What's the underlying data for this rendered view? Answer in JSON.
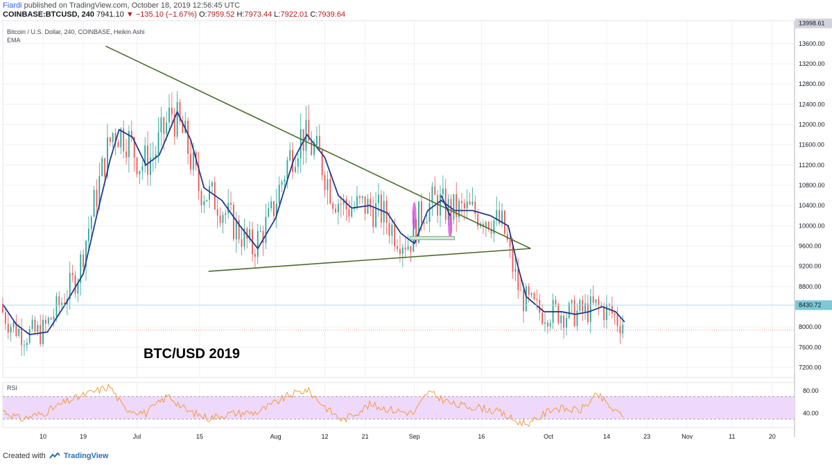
{
  "header": {
    "user": "Fiardi",
    "published_text": "published on TradingView.com, October 18, 2019 12:56:45 UTC",
    "symbol": "COINBASE:BTCUSD, 240",
    "last": "7941.10",
    "change": "−135.10 (−1.67%)",
    "o_label": "O:",
    "o_value": "7959.52",
    "h_label": "H:",
    "h_value": "7973.44",
    "l_label": "L:",
    "l_value": "7922.01",
    "c_label": "C:",
    "c_value": "7939.64"
  },
  "footer": {
    "created_text": "Created with",
    "brand": "TradingView"
  },
  "icons": {
    "down_arrow": "down-triangle-icon",
    "logo": "tradingview-logo-icon"
  },
  "colors": {
    "bull": "#26a69a",
    "bear": "#ef5350",
    "ema": "#1e3a8a",
    "trendline": "#4a6b2a",
    "rsi_line": "#f0932b",
    "rsi_band": "#efd9fb",
    "price_label_top": "#d1d4dc",
    "price_label_cyan": "#7ec8d8",
    "last_price_line": "#e57373",
    "blue_arrow": "#1e3a8a",
    "magenta": "#d63bdc"
  },
  "chart_data": [
    {
      "type": "candlestick",
      "title": "Bitcoin / U.S. Dollar, 240, COINBASE, Heikin Ashi",
      "indicator": "EMA",
      "annotation": "BTC/USD 2019",
      "xlabels": [
        "10",
        "19",
        "Jul",
        "15",
        "Aug",
        "12",
        "21",
        "Sep",
        "16",
        "Oct",
        "14",
        "23",
        "Nov",
        "11",
        "20"
      ],
      "ytick_labels": [
        "13600.00",
        "13200.00",
        "12800.00",
        "12400.00",
        "12000.00",
        "11600.00",
        "11200.00",
        "10800.00",
        "10400.00",
        "10000.00",
        "9600.00",
        "9200.00",
        "8800.00",
        "8000.00",
        "7600.00",
        "7200.00"
      ],
      "ylim": [
        7000,
        14050
      ],
      "price_labels": {
        "top": "13998.61",
        "marker": "8430.72",
        "last": 7941.1
      },
      "grid": true,
      "ema_path": [
        [
          "Jun 01",
          8450
        ],
        [
          "Jun 04",
          8050
        ],
        [
          "Jun 07",
          7850
        ],
        [
          "Jun 11",
          7900
        ],
        [
          "Jun 15",
          8450
        ],
        [
          "Jun 19",
          9050
        ],
        [
          "Jun 22",
          10200
        ],
        [
          "Jun 25",
          11300
        ],
        [
          "Jun 27",
          11900
        ],
        [
          "Jun 30",
          11750
        ],
        [
          "Jul 03",
          11200
        ],
        [
          "Jul 06",
          11400
        ],
        [
          "Jul 10",
          12250
        ],
        [
          "Jul 13",
          11700
        ],
        [
          "Jul 16",
          10750
        ],
        [
          "Jul 20",
          10500
        ],
        [
          "Jul 24",
          10000
        ],
        [
          "Jul 28",
          9550
        ],
        [
          "Aug 01",
          10150
        ],
        [
          "Aug 05",
          11300
        ],
        [
          "Aug 08",
          11800
        ],
        [
          "Aug 12",
          11350
        ],
        [
          "Aug 15",
          10600
        ],
        [
          "Aug 18",
          10350
        ],
        [
          "Aug 22",
          10400
        ],
        [
          "Aug 26",
          10250
        ],
        [
          "Aug 29",
          9850
        ],
        [
          "Sep 01",
          9650
        ],
        [
          "Sep 04",
          10300
        ],
        [
          "Sep 07",
          10500
        ],
        [
          "Sep 10",
          10300
        ],
        [
          "Sep 14",
          10300
        ],
        [
          "Sep 18",
          10200
        ],
        [
          "Sep 22",
          10000
        ],
        [
          "Sep 24",
          9250
        ],
        [
          "Sep 26",
          8600
        ],
        [
          "Sep 30",
          8300
        ],
        [
          "Oct 04",
          8300
        ],
        [
          "Oct 07",
          8250
        ],
        [
          "Oct 10",
          8300
        ],
        [
          "Oct 13",
          8400
        ],
        [
          "Oct 16",
          8300
        ],
        [
          "Oct 18",
          8100
        ]
      ],
      "trendlines": [
        {
          "name": "upper",
          "from": [
            "Jun 24",
            13550
          ],
          "to": [
            "Sep 27",
            9550
          ]
        },
        {
          "name": "lower",
          "from": [
            "Jul 17",
            9100
          ],
          "to": [
            "Sep 27",
            9550
          ]
        }
      ]
    },
    {
      "type": "line",
      "title": "RSI",
      "ytick_labels": [
        "80.00",
        "40.00"
      ],
      "band": [
        30,
        70
      ],
      "ylim": [
        15,
        95
      ],
      "values_path": [
        [
          "Jun 01",
          45
        ],
        [
          "Jun 05",
          30
        ],
        [
          "Jun 10",
          40
        ],
        [
          "Jun 15",
          60
        ],
        [
          "Jun 20",
          75
        ],
        [
          "Jun 25",
          88
        ],
        [
          "Jun 28",
          50
        ],
        [
          "Jul 03",
          40
        ],
        [
          "Jul 08",
          72
        ],
        [
          "Jul 12",
          45
        ],
        [
          "Jul 17",
          32
        ],
        [
          "Jul 22",
          40
        ],
        [
          "Jul 28",
          42
        ],
        [
          "Aug 04",
          72
        ],
        [
          "Aug 08",
          82
        ],
        [
          "Aug 13",
          45
        ],
        [
          "Aug 16",
          28
        ],
        [
          "Aug 22",
          55
        ],
        [
          "Aug 28",
          45
        ],
        [
          "Sep 01",
          40
        ],
        [
          "Sep 04",
          78
        ],
        [
          "Sep 10",
          55
        ],
        [
          "Sep 16",
          50
        ],
        [
          "Sep 20",
          42
        ],
        [
          "Sep 24",
          25
        ],
        [
          "Sep 27",
          22
        ],
        [
          "Oct 02",
          50
        ],
        [
          "Oct 08",
          45
        ],
        [
          "Oct 12",
          73
        ],
        [
          "Oct 16",
          42
        ],
        [
          "Oct 18",
          38
        ]
      ]
    }
  ]
}
